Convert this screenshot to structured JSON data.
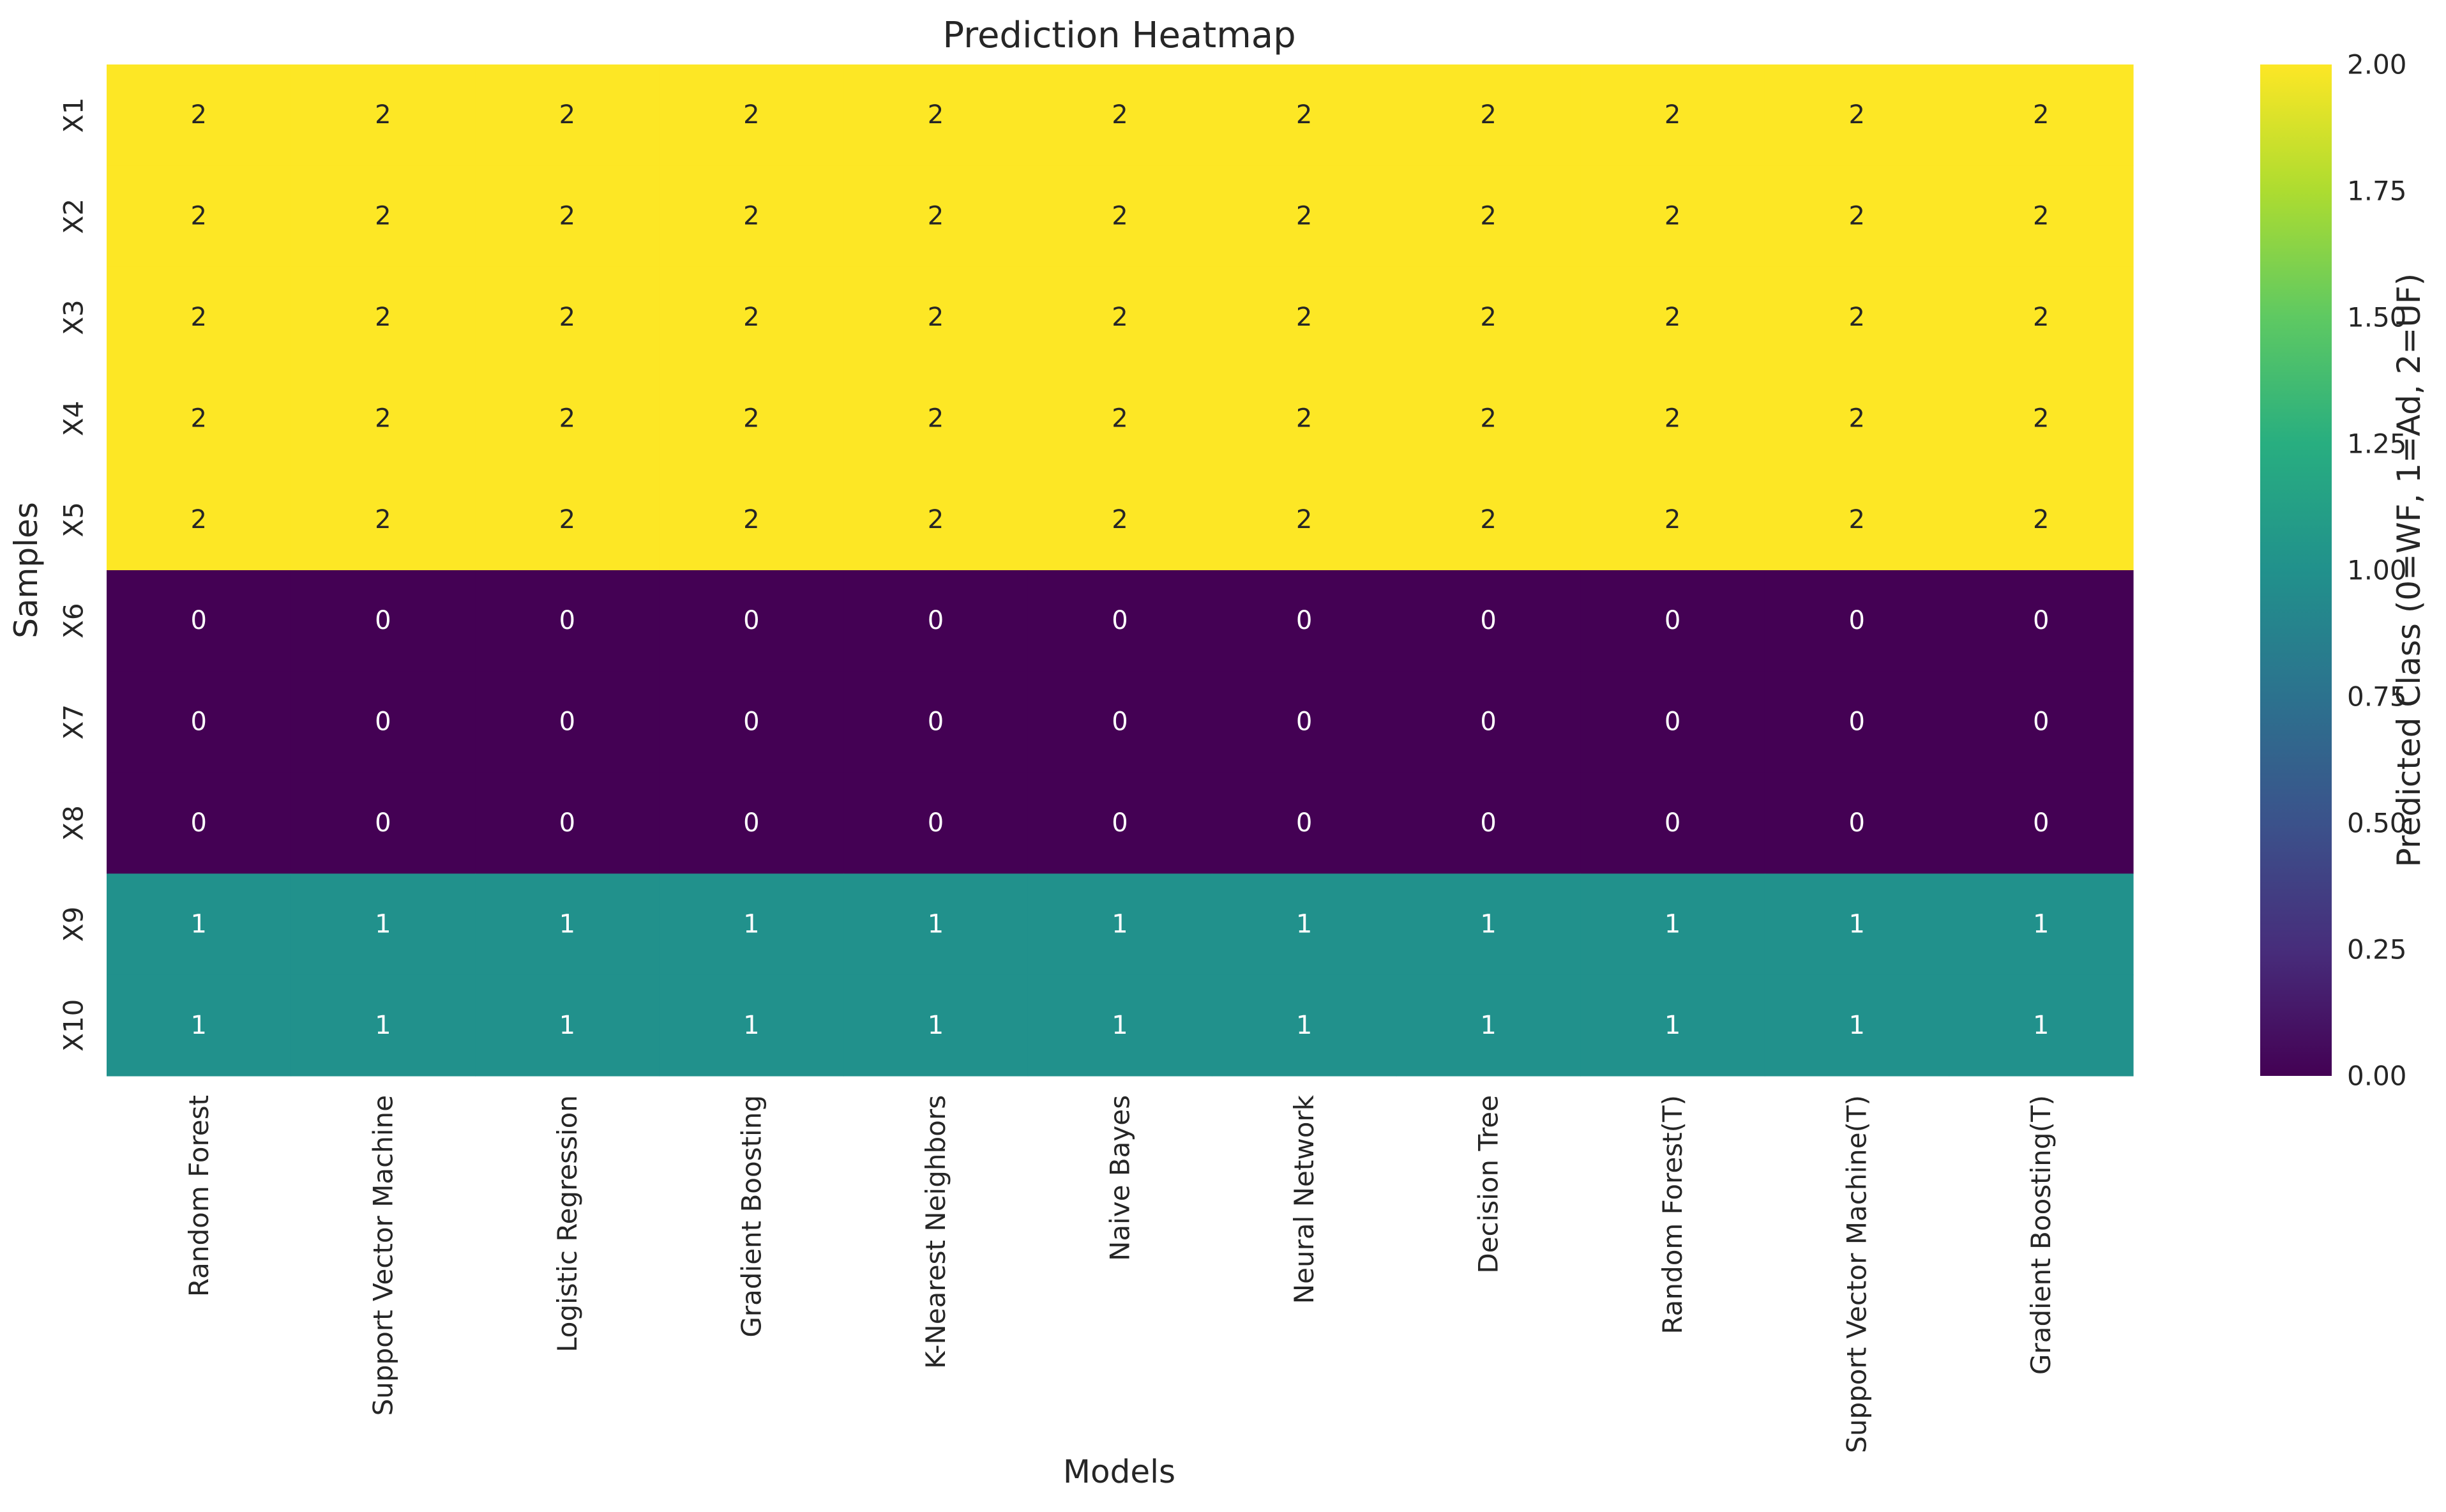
{
  "chart_data": {
    "type": "heatmap",
    "title": "Prediction Heatmap",
    "xlabel": "Models",
    "ylabel": "Samples",
    "x": [
      "Random Forest",
      "Support Vector Machine",
      "Logistic Regression",
      "Gradient Boosting",
      "K-Nearest Neighbors",
      "Naive Bayes",
      "Neural Network",
      "Decision Tree",
      "Random Forest(T)",
      "Support Vector Machine(T)",
      "Gradient Boosting(T)"
    ],
    "y": [
      "X1",
      "X2",
      "X3",
      "X4",
      "X5",
      "X6",
      "X7",
      "X8",
      "X9",
      "X10"
    ],
    "values": [
      [
        2,
        2,
        2,
        2,
        2,
        2,
        2,
        2,
        2,
        2,
        2
      ],
      [
        2,
        2,
        2,
        2,
        2,
        2,
        2,
        2,
        2,
        2,
        2
      ],
      [
        2,
        2,
        2,
        2,
        2,
        2,
        2,
        2,
        2,
        2,
        2
      ],
      [
        2,
        2,
        2,
        2,
        2,
        2,
        2,
        2,
        2,
        2,
        2
      ],
      [
        2,
        2,
        2,
        2,
        2,
        2,
        2,
        2,
        2,
        2,
        2
      ],
      [
        0,
        0,
        0,
        0,
        0,
        0,
        0,
        0,
        0,
        0,
        0
      ],
      [
        0,
        0,
        0,
        0,
        0,
        0,
        0,
        0,
        0,
        0,
        0
      ],
      [
        0,
        0,
        0,
        0,
        0,
        0,
        0,
        0,
        0,
        0,
        0
      ],
      [
        1,
        1,
        1,
        1,
        1,
        1,
        1,
        1,
        1,
        1,
        1
      ],
      [
        1,
        1,
        1,
        1,
        1,
        1,
        1,
        1,
        1,
        1,
        1
      ]
    ],
    "annotate": true,
    "colormap": "viridis",
    "colors": {
      "0": "#440154",
      "1": "#21918c",
      "2": "#fde725"
    },
    "colorbar": {
      "label": "Predicted Class (0=WF, 1=Ad, 2=UF)",
      "range": [
        0,
        2
      ],
      "ticks": [
        "0.00",
        "0.25",
        "0.50",
        "0.75",
        "1.00",
        "1.25",
        "1.50",
        "1.75",
        "2.00"
      ]
    }
  }
}
